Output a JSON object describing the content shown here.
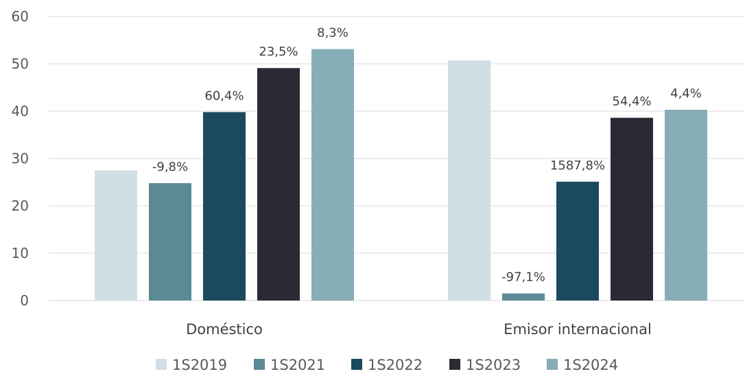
{
  "chart_data": {
    "type": "bar",
    "categories": [
      "Doméstico",
      "Emisor internacional"
    ],
    "series": [
      {
        "name": "1S2019",
        "color": "#d0dfe4",
        "values": [
          27.5,
          50.7
        ],
        "labels": [
          "",
          ""
        ]
      },
      {
        "name": "1S2021",
        "color": "#5b8a94",
        "values": [
          24.8,
          1.5
        ],
        "labels": [
          "-9,8%",
          "-97,1%"
        ]
      },
      {
        "name": "1S2022",
        "color": "#1b4a5e",
        "values": [
          39.8,
          25.1
        ],
        "labels": [
          "60,4%",
          "1587,8%"
        ]
      },
      {
        "name": "1S2023",
        "color": "#2a2934",
        "values": [
          49.1,
          38.6
        ],
        "labels": [
          "23,5%",
          "54,4%"
        ]
      },
      {
        "name": "1S2024",
        "color": "#87adb7",
        "values": [
          53.1,
          40.3
        ],
        "labels": [
          "8,3%",
          "4,4%"
        ]
      }
    ],
    "title": "",
    "xlabel": "",
    "ylabel": "",
    "ylim": [
      0,
      60
    ],
    "yticks": [
      0,
      10,
      20,
      30,
      40,
      50,
      60
    ],
    "grid": true,
    "legend_position": "bottom"
  }
}
